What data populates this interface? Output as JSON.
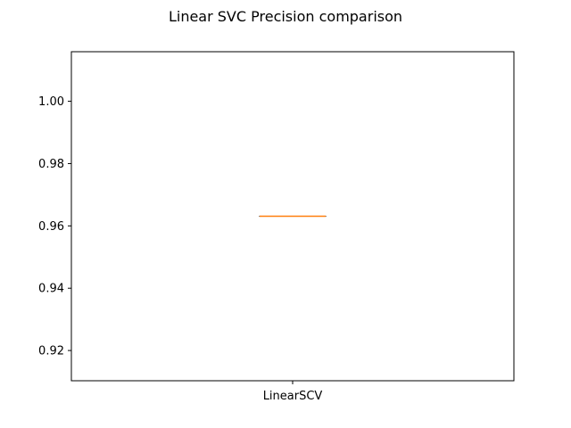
{
  "chart_data": {
    "type": "box",
    "title": "Linear SVC Precision comparison",
    "xlabel": "",
    "ylabel": "",
    "categories": [
      "LinearSCV"
    ],
    "series": [
      {
        "label": "LinearSCV",
        "min": 0.9631,
        "q1": 0.9631,
        "median": 0.9631,
        "q3": 0.9631,
        "max": 0.9631
      }
    ],
    "ylim": [
      0.9103,
      1.0159
    ],
    "yticks": [
      0.92,
      0.94,
      0.96,
      0.98,
      1.0
    ],
    "ytick_labels": [
      "0.92",
      "0.94",
      "0.96",
      "0.98",
      "1.00"
    ],
    "grid": false,
    "legend": "none",
    "colors": {
      "box": "#000000",
      "median": "#ff7f0e",
      "axes": "#000000"
    }
  }
}
